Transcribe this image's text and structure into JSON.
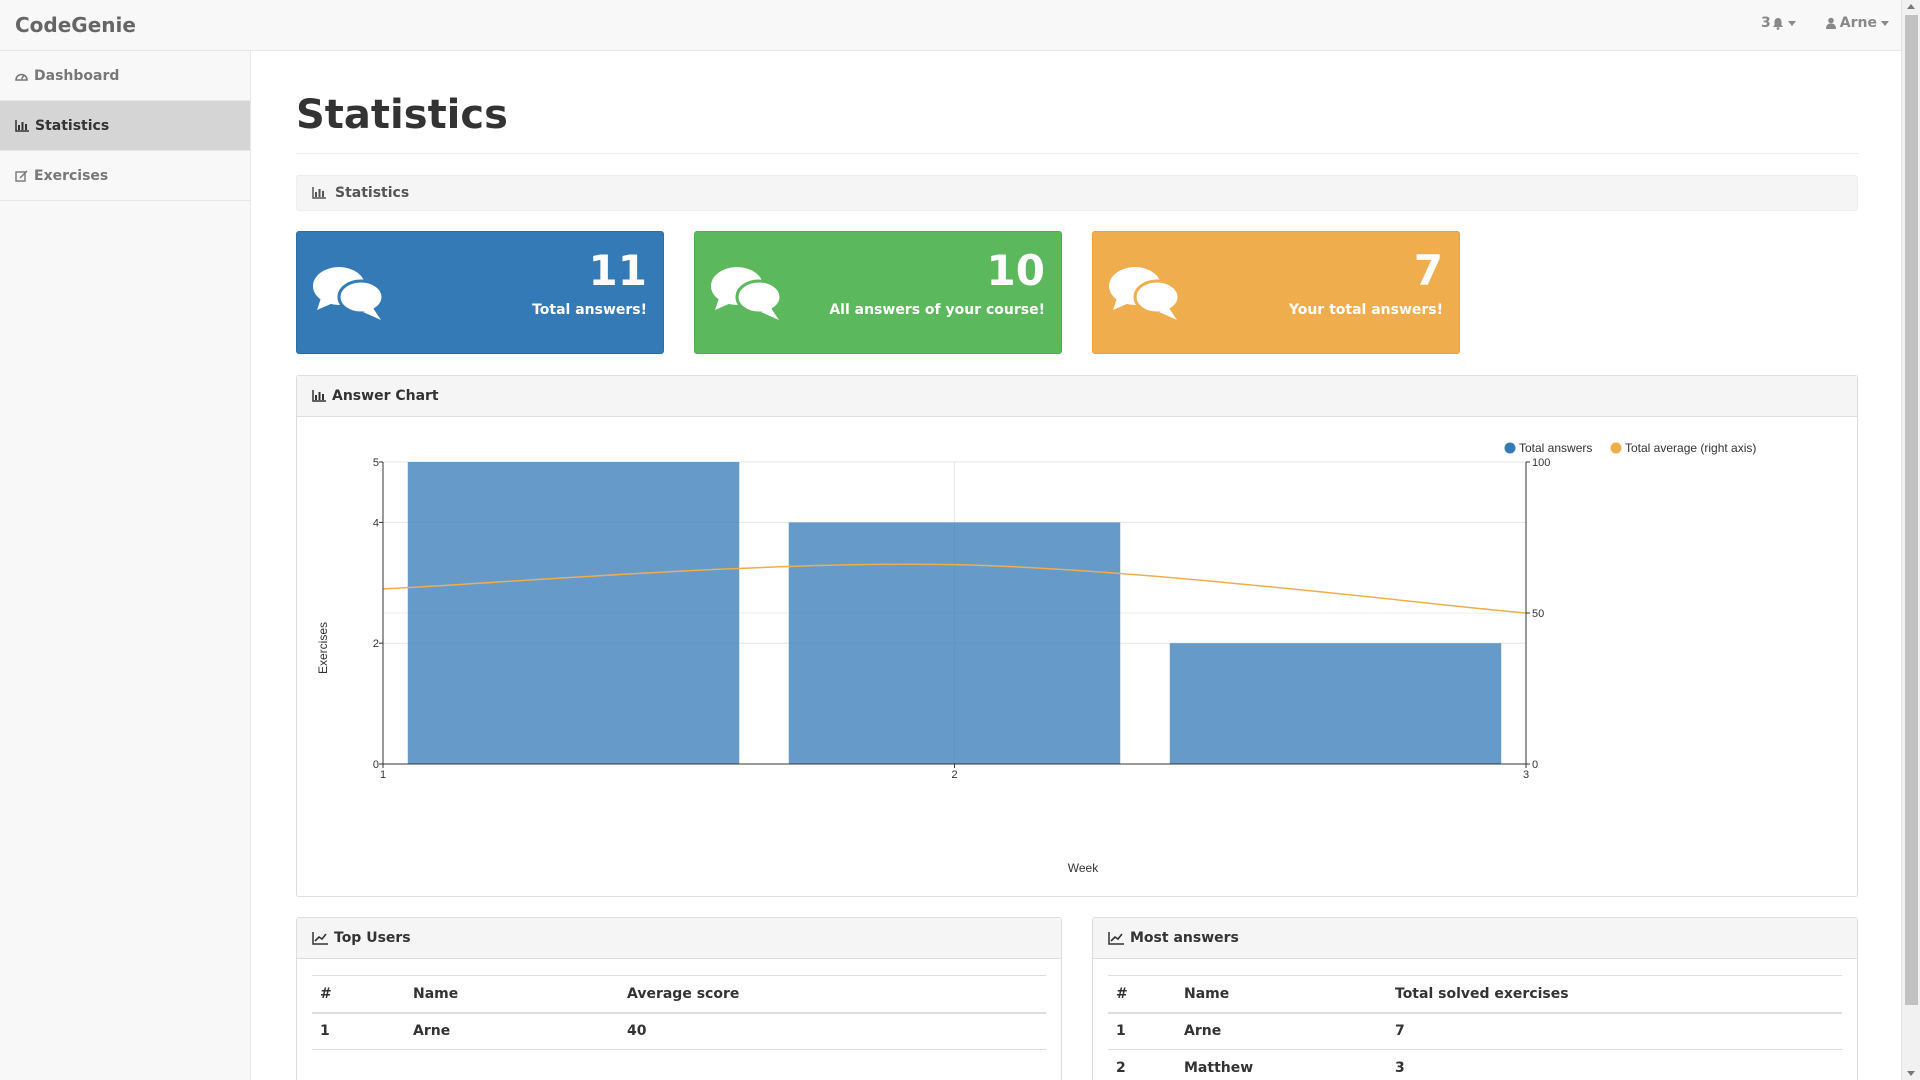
{
  "app": {
    "brand": "CodeGenie"
  },
  "navbar": {
    "notifications": {
      "count": "3",
      "icon": "bell-icon"
    },
    "user": {
      "name": "Arne",
      "icon": "user-icon"
    }
  },
  "sidebar": {
    "items": [
      {
        "label": "Dashboard",
        "icon": "dashboard-icon",
        "active": false
      },
      {
        "label": "Statistics",
        "icon": "bar-chart-icon",
        "active": true
      },
      {
        "label": "Exercises",
        "icon": "edit-icon",
        "active": false
      }
    ]
  },
  "page": {
    "title": "Statistics",
    "section_label": "Statistics"
  },
  "stat_boxes": [
    {
      "value": "11",
      "label": "Total answers!",
      "color": "#337ab7",
      "icon": "comments-icon"
    },
    {
      "value": "10",
      "label": "All answers of your course!",
      "color": "#5cb85c",
      "icon": "comments-icon"
    },
    {
      "value": "7",
      "label": "Your total answers!",
      "color": "#f0ad4e",
      "icon": "comments-icon"
    }
  ],
  "answer_chart": {
    "title": "Answer Chart",
    "legend": {
      "total_answers": "Total answers",
      "total_average": "Total average (right axis)"
    }
  },
  "chart_data": {
    "type": "bar",
    "x": [
      1,
      2,
      3
    ],
    "xlabel": "Week",
    "ylabel": "Exercises",
    "ylim": [
      0,
      5
    ],
    "y_ticks": [
      0,
      2,
      4,
      5
    ],
    "y2lim": [
      0,
      100
    ],
    "y2_ticks": [
      0,
      50,
      100
    ],
    "legend_position": "top-right",
    "series": [
      {
        "name": "Total answers",
        "type": "bar",
        "axis": "left",
        "color": "#337ab7",
        "values": [
          5,
          4,
          2
        ]
      },
      {
        "name": "Total average (right axis)",
        "type": "line",
        "axis": "right",
        "color": "#f0ad4e",
        "values": [
          58,
          66,
          50
        ]
      }
    ]
  },
  "top_users": {
    "title": "Top Users",
    "columns": [
      "#",
      "Name",
      "Average score"
    ],
    "rows": [
      [
        "1",
        "Arne",
        "40"
      ]
    ]
  },
  "most_answers": {
    "title": "Most answers",
    "columns": [
      "#",
      "Name",
      "Total solved exercises"
    ],
    "rows": [
      [
        "1",
        "Arne",
        "7"
      ],
      [
        "2",
        "Matthew",
        "3"
      ]
    ]
  }
}
